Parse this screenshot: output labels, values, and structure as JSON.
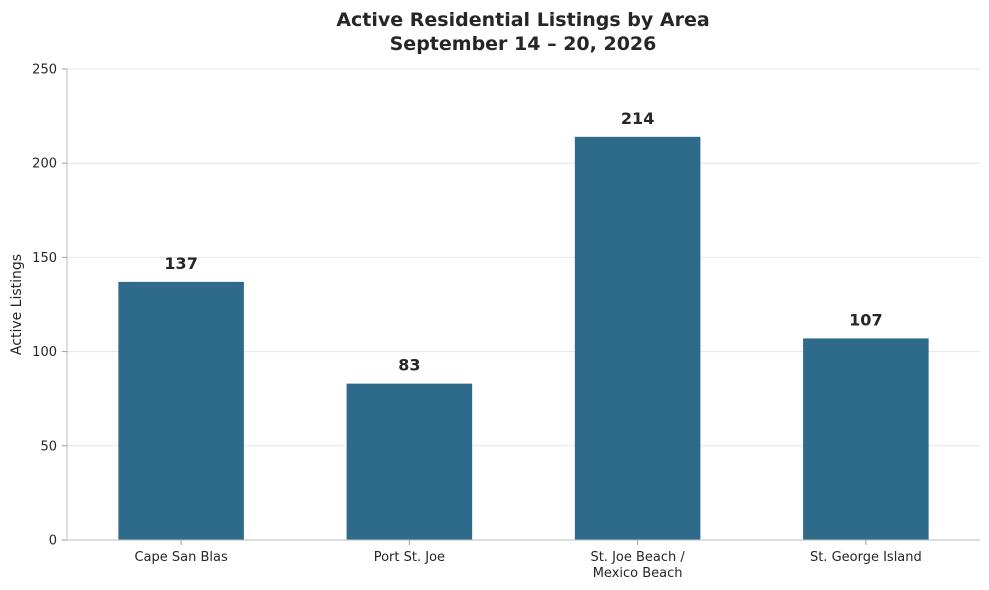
{
  "chart_data": {
    "type": "bar",
    "title": [
      "Active Residential Listings by Area",
      "September 14 – 20, 2026"
    ],
    "xlabel": "",
    "ylabel": "Active Listings",
    "categories": [
      [
        "Cape San Blas"
      ],
      [
        "Port St. Joe"
      ],
      [
        "St. Joe Beach /",
        "Mexico Beach"
      ],
      [
        "St. George Island"
      ]
    ],
    "values": [
      137,
      83,
      214,
      107
    ],
    "data_labels": [
      "137",
      "83",
      "214",
      "107"
    ],
    "ylim": [
      0,
      250
    ],
    "yticks": [
      0,
      50,
      100,
      150,
      200,
      250
    ],
    "ytick_labels": [
      "0",
      "50",
      "100",
      "150",
      "200",
      "250"
    ],
    "grid": "horizontal",
    "legend": "none",
    "bar_color": "#2e6a89"
  }
}
